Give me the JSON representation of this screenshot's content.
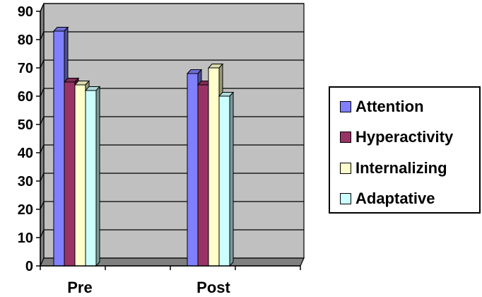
{
  "chart_data": {
    "type": "bar",
    "categories": [
      "Pre",
      "Post"
    ],
    "series": [
      {
        "name": "Attention",
        "values": [
          83,
          68
        ],
        "color": "#8080ff"
      },
      {
        "name": "Hyperactivity",
        "values": [
          65,
          64
        ],
        "color": "#993366"
      },
      {
        "name": "Internalizing",
        "values": [
          64,
          70
        ],
        "color": "#ffffcc"
      },
      {
        "name": "Adaptative",
        "values": [
          62,
          60
        ],
        "color": "#ccffff"
      }
    ],
    "yticks": [
      "0",
      "10",
      "20",
      "30",
      "40",
      "50",
      "60",
      "70",
      "80",
      "90"
    ],
    "ylim": [
      0,
      90
    ],
    "grid": true,
    "legend_position": "right",
    "style": "3d-clustered-column",
    "plot_background": "#c0c0c0"
  }
}
